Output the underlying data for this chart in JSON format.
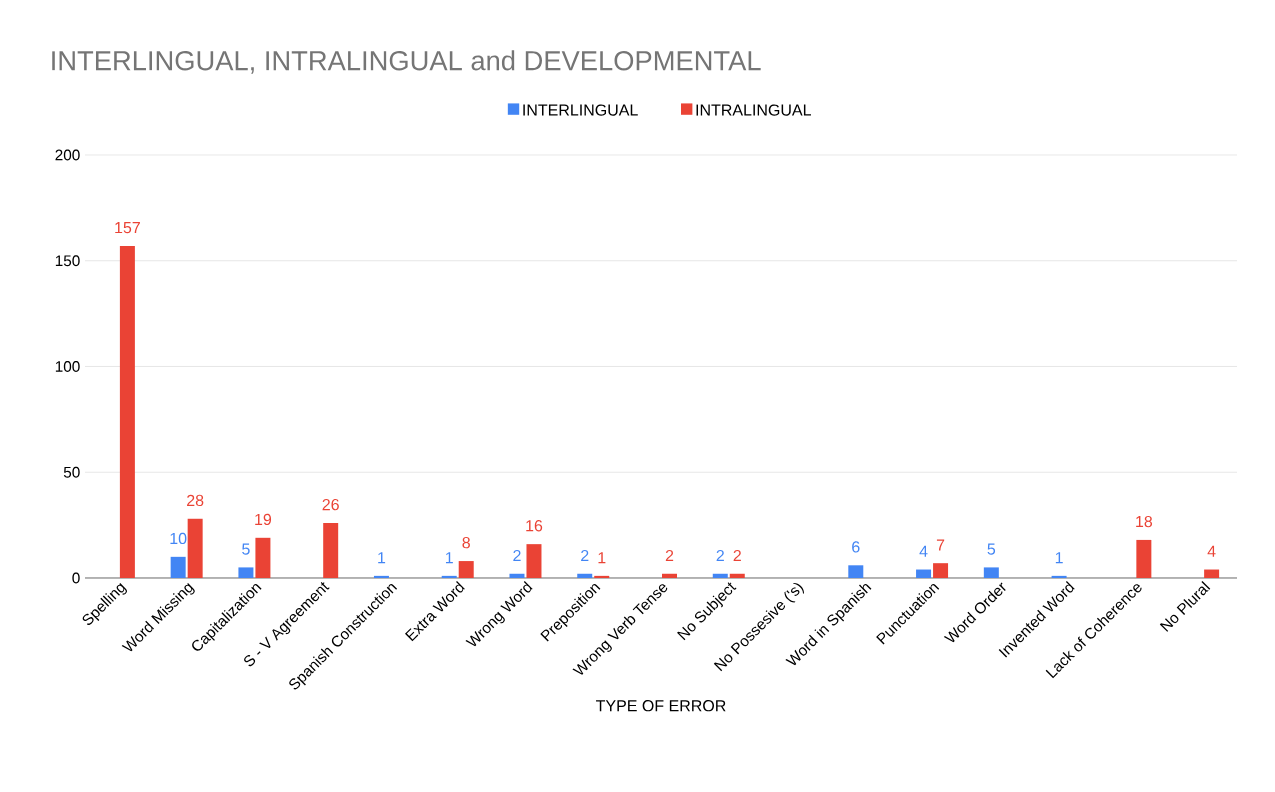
{
  "chart_data": {
    "type": "bar",
    "title": "INTERLINGUAL, INTRALINGUAL and DEVELOPMENTAL",
    "xlabel": "TYPE OF ERROR",
    "categories": [
      "Spelling",
      "Word Missing",
      "Capitalization",
      "S - V Agreement",
      "Spanish Construction",
      "Extra Word",
      "Wrong Word",
      "Preposition",
      "Wrong Verb Tense",
      "No Subject",
      "No Possesive ('s)",
      "Word in Spanish",
      "Punctuation",
      "Word Order",
      "Invented Word",
      "Lack of Coherence",
      "No Plural"
    ],
    "series": [
      {
        "name": "INTERLINGUAL",
        "color": "#4285f4",
        "values": [
          null,
          10,
          5,
          null,
          1,
          1,
          2,
          2,
          null,
          2,
          null,
          6,
          4,
          5,
          1,
          null,
          null
        ]
      },
      {
        "name": "INTRALINGUAL",
        "color": "#ea4335",
        "values": [
          157,
          28,
          19,
          26,
          null,
          8,
          16,
          1,
          2,
          2,
          null,
          null,
          7,
          null,
          null,
          18,
          4
        ]
      }
    ],
    "ylim": [
      0,
      200
    ],
    "yticks": [
      0,
      50,
      100,
      150,
      200
    ],
    "grid": "y",
    "legend": "top",
    "data_labels": true
  }
}
